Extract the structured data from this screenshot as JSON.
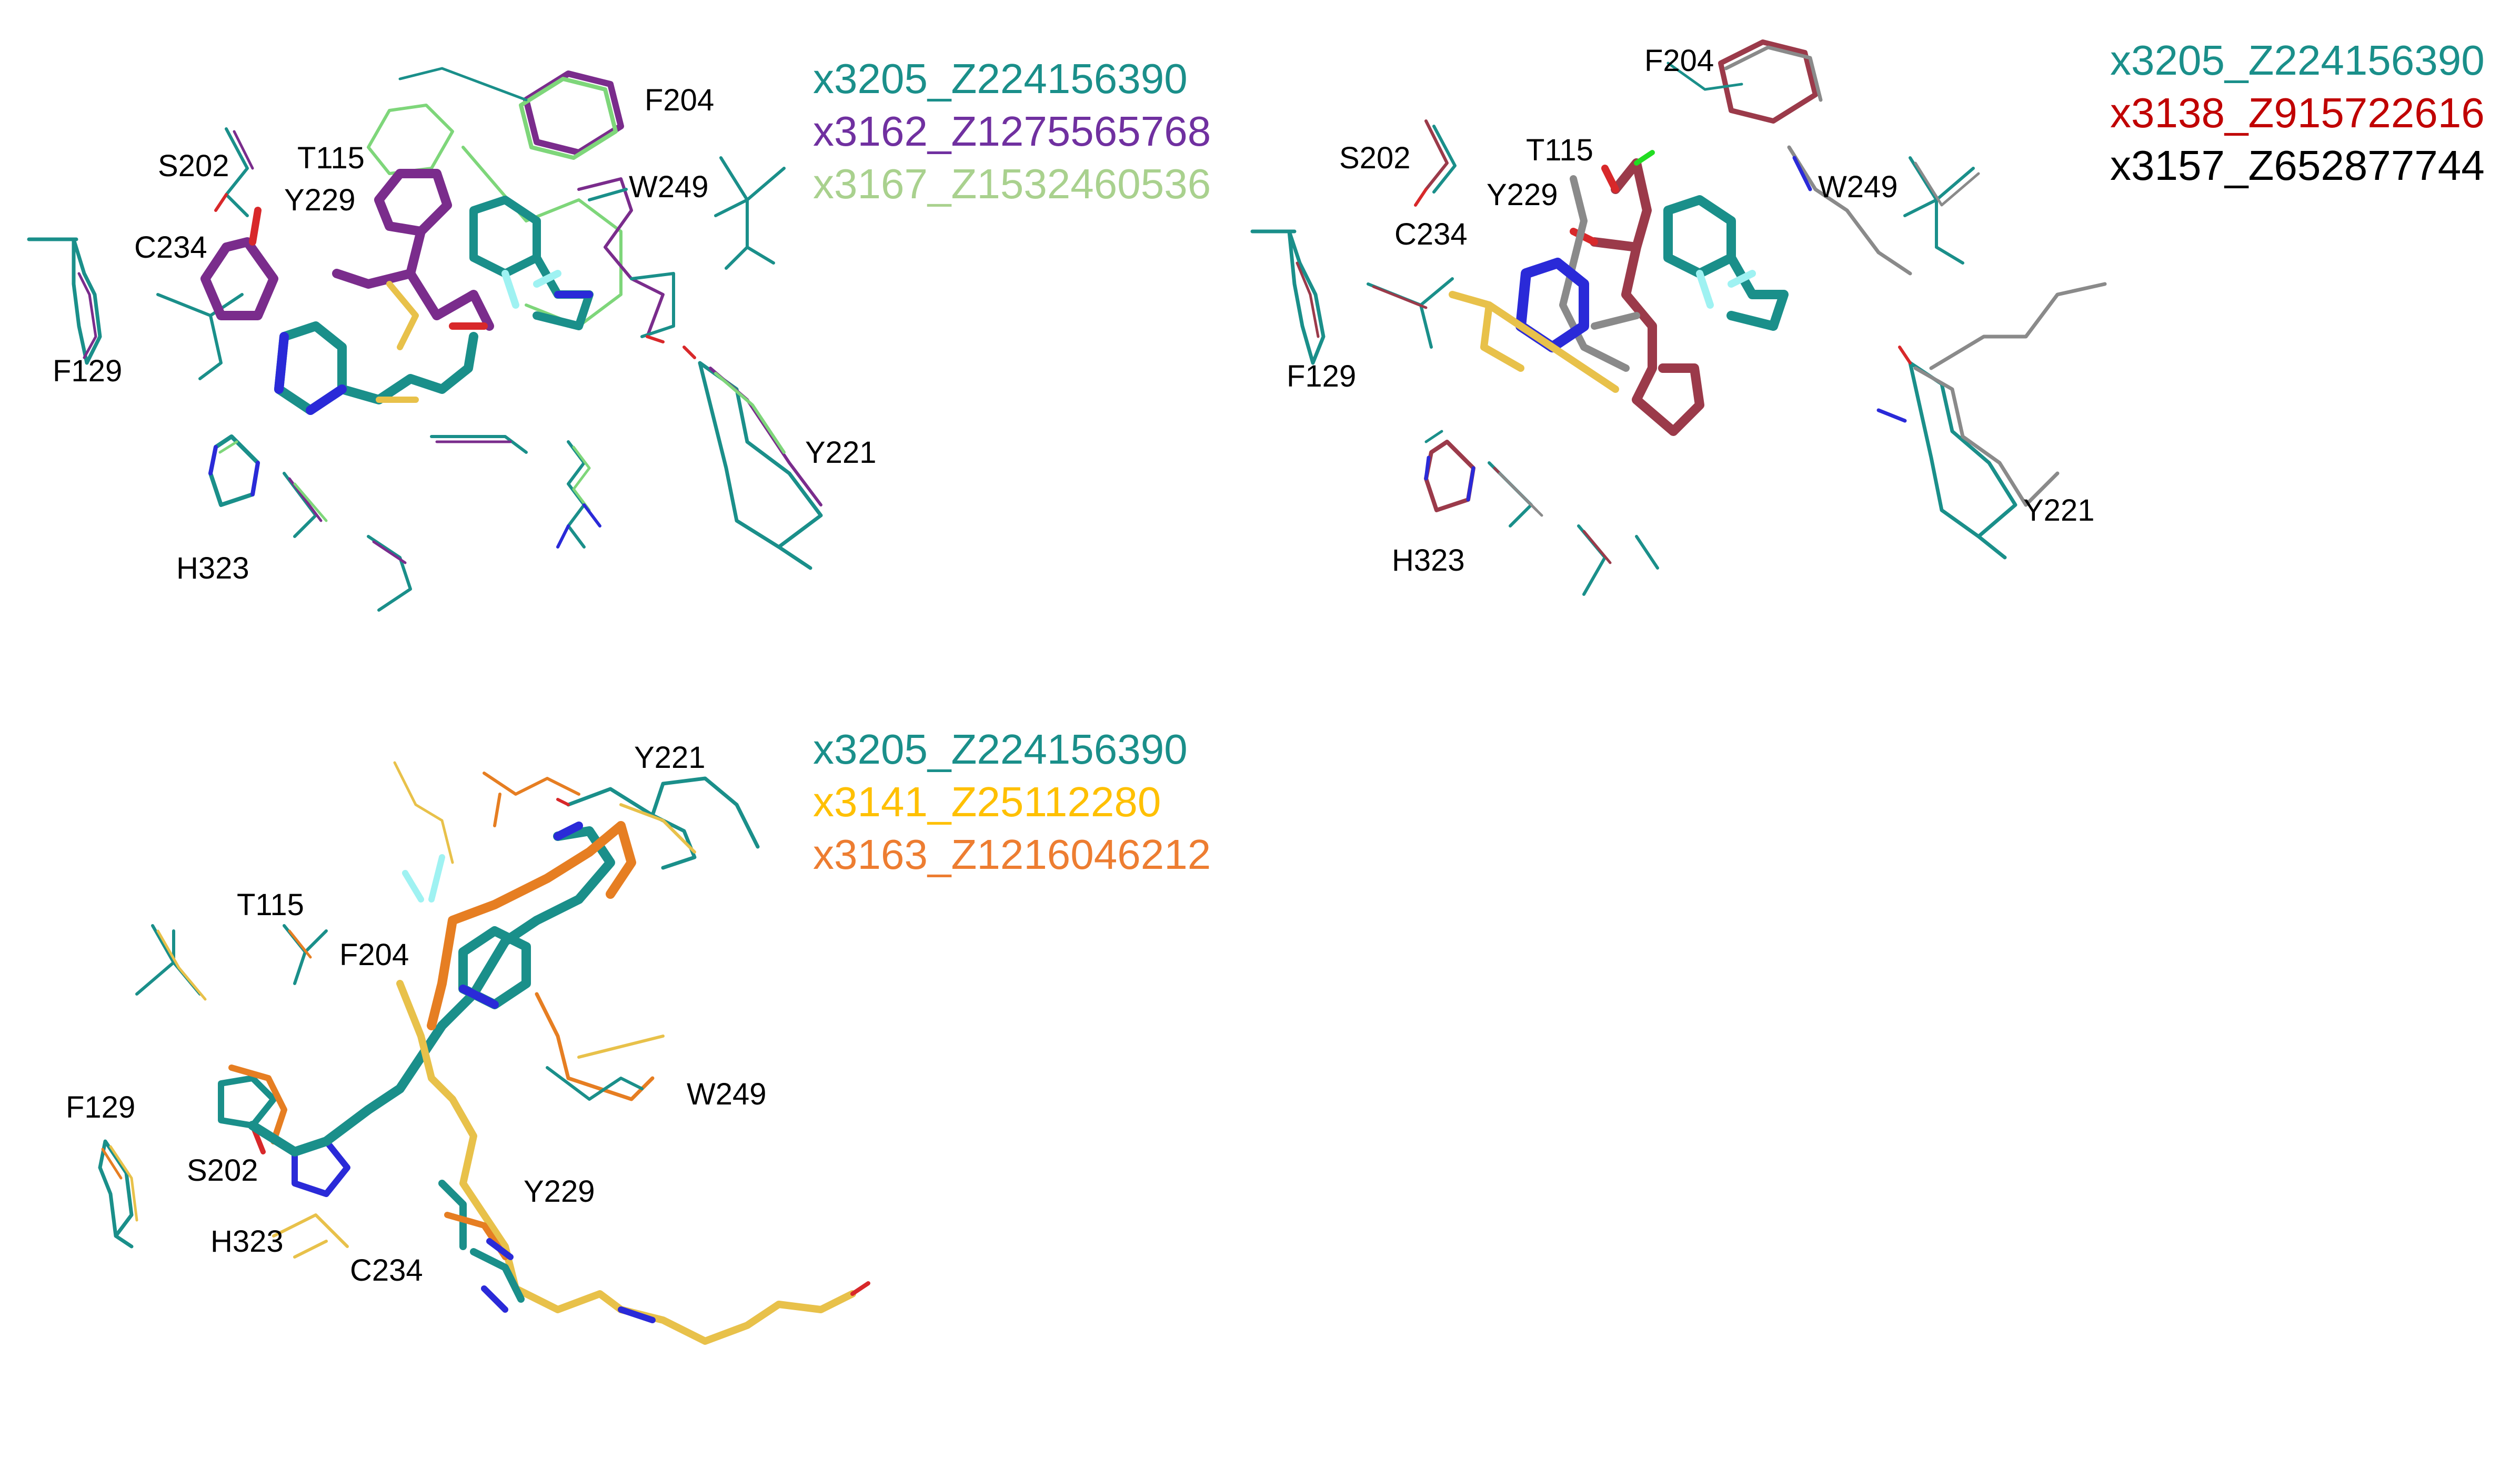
{
  "panels": [
    {
      "legend": [
        {
          "text": "x3205_Z224156390",
          "color": "#1a8f8a"
        },
        {
          "text": "x3162_Z1275565768",
          "color": "#7030a0"
        },
        {
          "text": "x3167_Z1532460536",
          "color": "#a9d18e"
        }
      ],
      "residues": [
        "F204",
        "S202",
        "T115",
        "Y229",
        "W249",
        "C234",
        "F129",
        "Y221",
        "H323"
      ]
    },
    {
      "legend": [
        {
          "text": "x3205_Z224156390",
          "color": "#1a8f8a"
        },
        {
          "text": "x3138_Z915722616",
          "color": "#c00000"
        },
        {
          "text": "x3157_Z652877744",
          "color": "#000000"
        }
      ],
      "residues": [
        "F204",
        "S202",
        "T115",
        "Y229",
        "W249",
        "C234",
        "F129",
        "H323",
        "Y221"
      ]
    },
    {
      "legend": [
        {
          "text": "x3205_Z224156390",
          "color": "#1a8f8a"
        },
        {
          "text": "x3141_Z25112280",
          "color": "#ffc000"
        },
        {
          "text": "x3163_Z1216046212",
          "color": "#ed7d31"
        }
      ],
      "residues": [
        "Y221",
        "T115",
        "F204",
        "W249",
        "F129",
        "S202",
        "Y229",
        "H323",
        "C234"
      ]
    }
  ],
  "colors": {
    "teal": "#1a8f8a",
    "purple": "#7a2c8c",
    "light_green": "#7ed67a",
    "maroon": "#9b3a4a",
    "grey": "#8a8a8a",
    "yellow": "#e8c14a",
    "orange": "#e67e22",
    "blue": "#2a2ad8",
    "red": "#d8282a",
    "cyan": "#9ff2f2",
    "green_atom": "#22dd22"
  }
}
